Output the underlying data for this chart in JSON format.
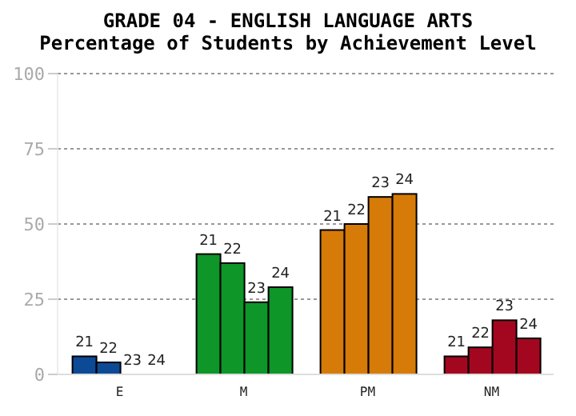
{
  "chart_data": {
    "type": "bar",
    "title": "GRADE 04 - ENGLISH LANGUAGE ARTS",
    "subtitle": "Percentage of Students by Achievement Level",
    "categories": [
      "E",
      "M",
      "PM",
      "NM"
    ],
    "series": [
      {
        "name": "21",
        "colors": [
          "#0d4a96",
          "#0e9628",
          "#d67a08",
          "#a3071f"
        ],
        "values": [
          6,
          40,
          48,
          6
        ]
      },
      {
        "name": "22",
        "colors": [
          "#0d4a96",
          "#0e9628",
          "#d67a08",
          "#a3071f"
        ],
        "values": [
          4,
          37,
          50,
          9
        ]
      },
      {
        "name": "23",
        "colors": [
          "#0d4a96",
          "#0e9628",
          "#d67a08",
          "#a3071f"
        ],
        "values": [
          0,
          24,
          59,
          18
        ]
      },
      {
        "name": "24",
        "colors": [
          "#0d4a96",
          "#0e9628",
          "#d67a08",
          "#a3071f"
        ],
        "values": [
          0,
          29,
          60,
          12
        ]
      }
    ],
    "ylim": [
      0,
      100
    ],
    "yticks": [
      0,
      25,
      50,
      75,
      100
    ],
    "grid": "y"
  }
}
